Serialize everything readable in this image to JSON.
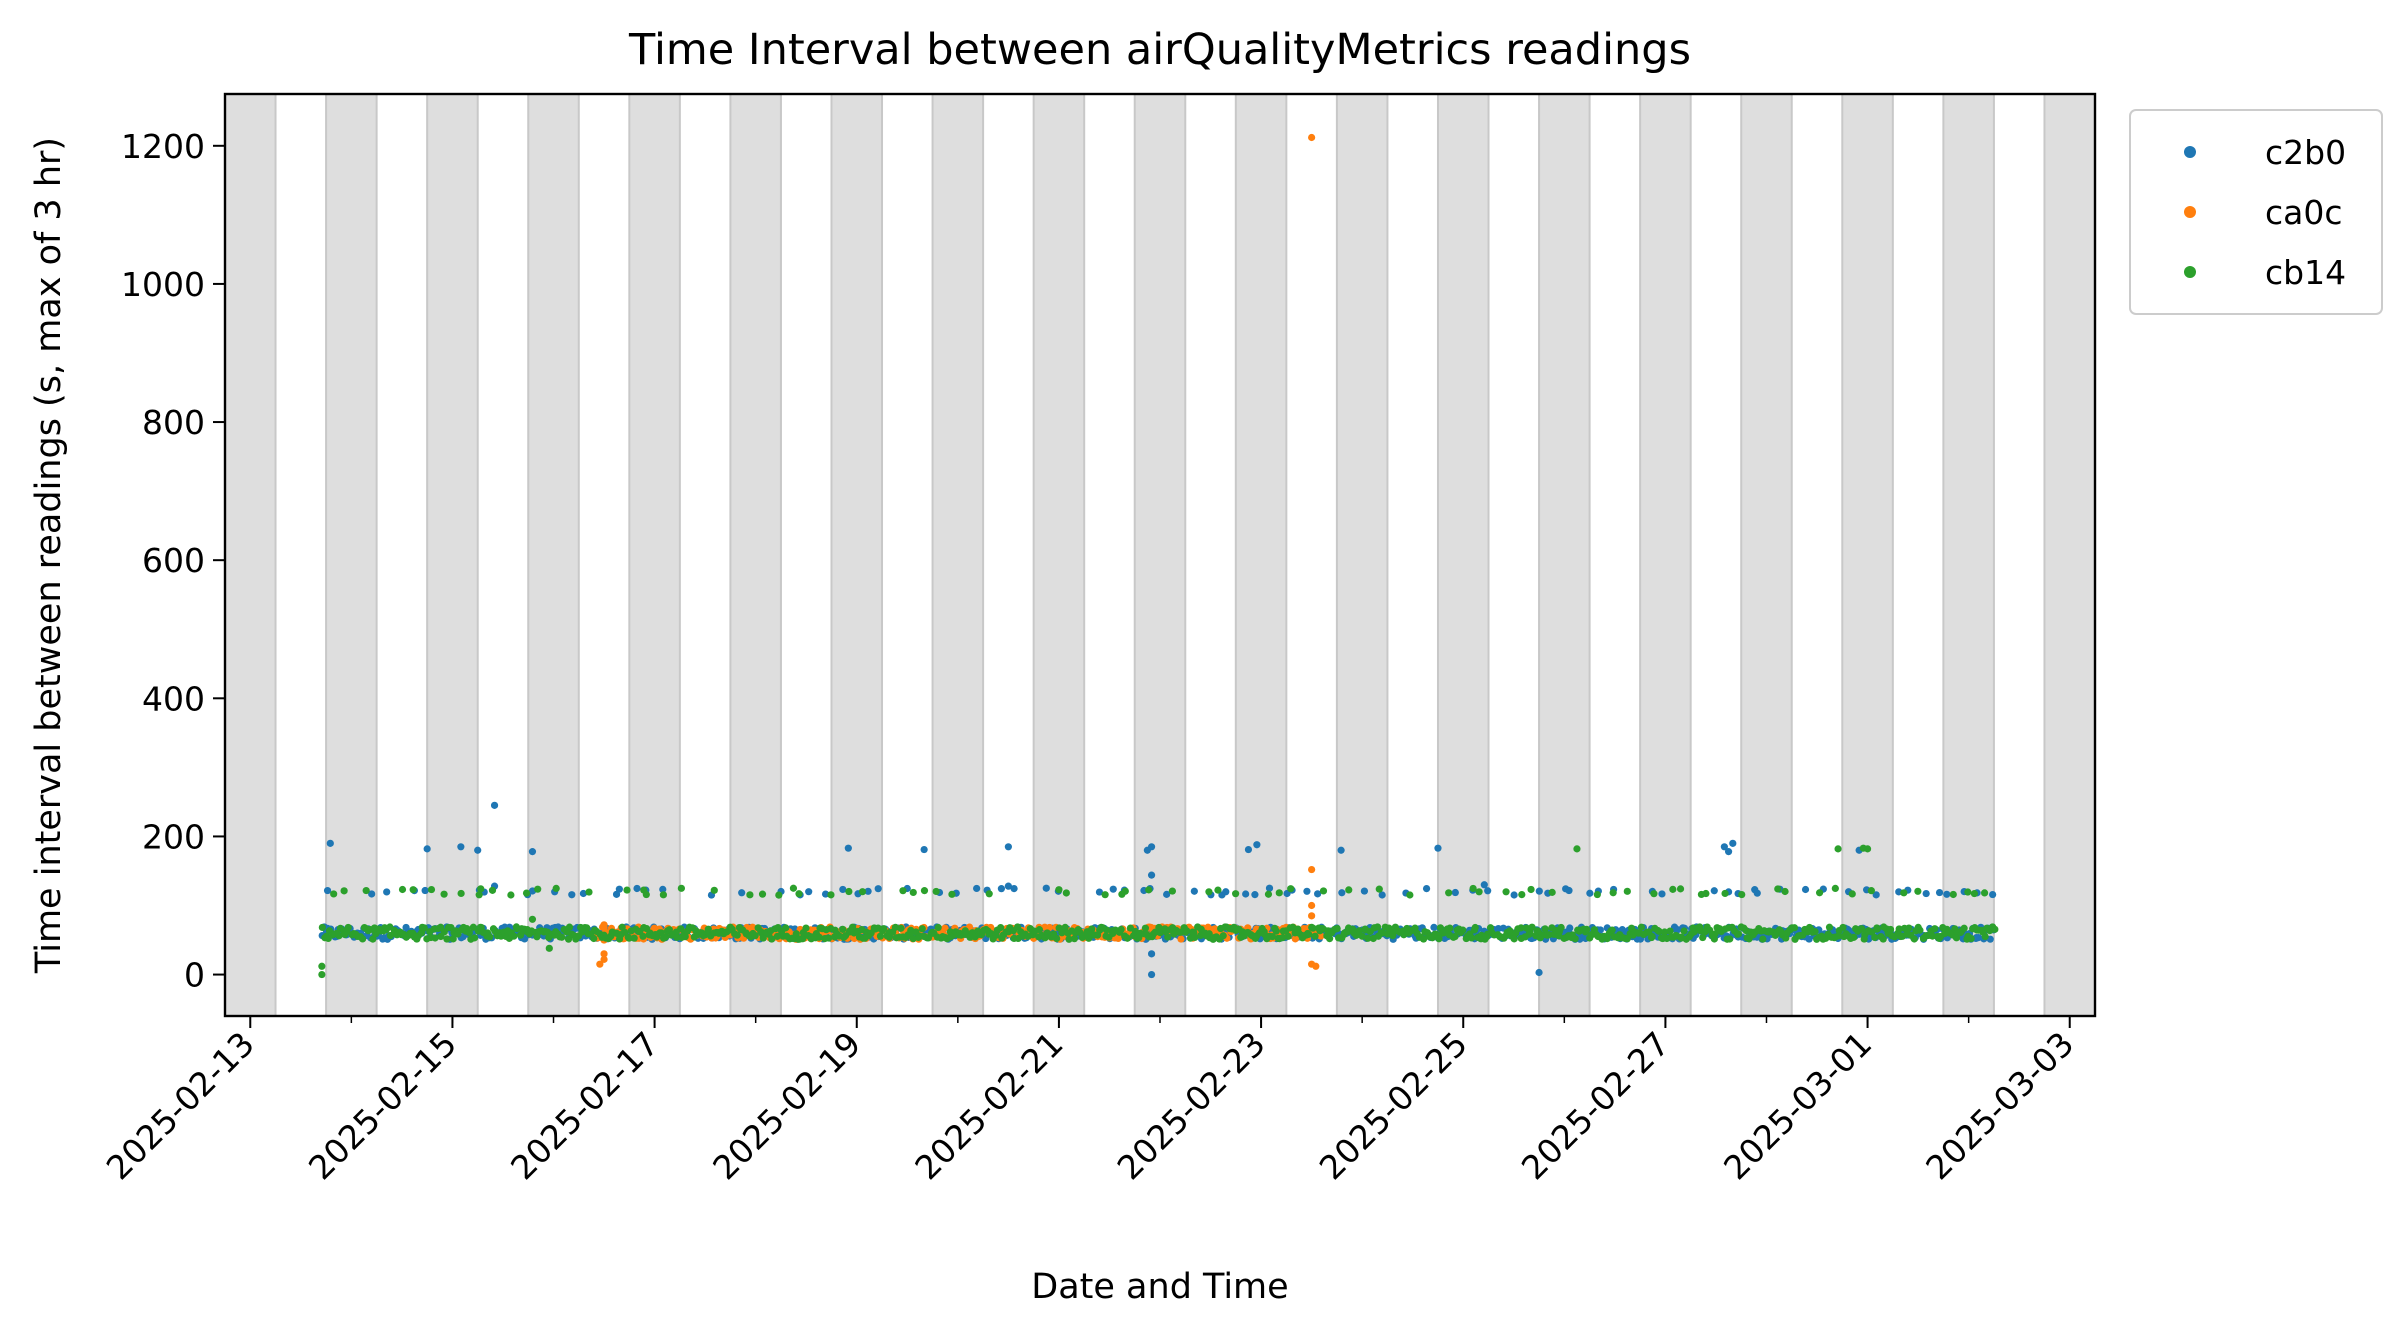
{
  "chart_data": {
    "type": "scatter",
    "title": "Time Interval between airQualityMetrics readings",
    "xlabel": "Date and Time",
    "ylabel": "Time interval between readings (s, max of 3 hr)",
    "xlim": [
      "2025-02-12T18:00",
      "2025-03-03T06:00"
    ],
    "ylim": [
      -60,
      1275
    ],
    "x_ticks": [
      "2025-02-13",
      "2025-02-15",
      "2025-02-17",
      "2025-02-19",
      "2025-02-21",
      "2025-02-23",
      "2025-02-25",
      "2025-02-27",
      "2025-03-01",
      "2025-03-03"
    ],
    "y_ticks": [
      0,
      200,
      400,
      600,
      800,
      1000,
      1200
    ],
    "y_tick_labels": [
      "0",
      "200",
      "400",
      "600",
      "800",
      "1000",
      "1200"
    ],
    "grid": false,
    "shaded_bands": {
      "color": "#dedede",
      "start": "2025-02-12T18:00",
      "daily_from": "18:00",
      "daily_to": "06:00",
      "note_visible": false
    },
    "legend": {
      "placement": "outside-top-right"
    },
    "series": [
      {
        "name": "c2b0",
        "color": "#1f77b4",
        "points": [
          [
            "2025-02-13T19:00",
            190
          ],
          [
            "2025-02-14T18:00",
            182
          ],
          [
            "2025-02-15T02:00",
            185
          ],
          [
            "2025-02-15T06:00",
            180
          ],
          [
            "2025-02-15T10:00",
            245
          ],
          [
            "2025-02-15T19:00",
            178
          ],
          [
            "2025-02-15T10:00",
            128
          ],
          [
            "2025-02-18T22:00",
            183
          ],
          [
            "2025-02-19T16:00",
            181
          ],
          [
            "2025-02-20T12:00",
            185
          ],
          [
            "2025-02-20T12:00",
            128
          ],
          [
            "2025-02-20T21:00",
            125
          ],
          [
            "2025-02-21T21:00",
            180
          ],
          [
            "2025-02-21T22:00",
            144
          ],
          [
            "2025-02-21T22:00",
            185
          ],
          [
            "2025-02-21T22:00",
            30
          ],
          [
            "2025-02-21T22:00",
            0
          ],
          [
            "2025-02-22T21:00",
            181
          ],
          [
            "2025-02-22T23:00",
            188
          ],
          [
            "2025-02-23T02:00",
            125
          ],
          [
            "2025-02-23T19:00",
            180
          ],
          [
            "2025-02-24T18:00",
            183
          ],
          [
            "2025-02-25T05:00",
            130
          ],
          [
            "2025-02-25T18:00",
            3
          ],
          [
            "2025-02-27T14:00",
            185
          ],
          [
            "2025-02-27T16:00",
            190
          ],
          [
            "2025-02-27T15:00",
            178
          ],
          [
            "2025-02-28T22:00",
            180
          ]
        ],
        "base_levels": [
          60,
          120
        ],
        "base_range": [
          "2025-02-13T17:00",
          "2025-03-02T06:00"
        ]
      },
      {
        "name": "ca0c",
        "color": "#ff7f0e",
        "points": [
          [
            "2025-02-16T12:00",
            72
          ],
          [
            "2025-02-16T12:00",
            68
          ],
          [
            "2025-02-16T12:00",
            50
          ],
          [
            "2025-02-16T12:00",
            30
          ],
          [
            "2025-02-16T12:00",
            22
          ],
          [
            "2025-02-16T11:00",
            15
          ],
          [
            "2025-02-23T12:00",
            1212
          ],
          [
            "2025-02-23T12:00",
            152
          ],
          [
            "2025-02-23T12:00",
            100
          ],
          [
            "2025-02-23T12:00",
            85
          ],
          [
            "2025-02-23T12:00",
            15
          ],
          [
            "2025-02-23T13:00",
            12
          ]
        ],
        "base_levels": [
          60
        ],
        "base_range": [
          "2025-02-16T10:00",
          "2025-02-23T14:00"
        ]
      },
      {
        "name": "cb14",
        "color": "#2ca02c",
        "points": [
          [
            "2025-02-13T17:00",
            12
          ],
          [
            "2025-02-13T17:00",
            0
          ],
          [
            "2025-02-15T19:00",
            80
          ],
          [
            "2025-02-15T23:00",
            38
          ],
          [
            "2025-02-26T03:00",
            182
          ],
          [
            "2025-02-28T17:00",
            182
          ],
          [
            "2025-02-28T23:00",
            183
          ],
          [
            "2025-03-01T00:00",
            182
          ]
        ],
        "base_levels": [
          60,
          120
        ],
        "base_range": [
          "2025-02-13T17:00",
          "2025-03-02T06:00"
        ]
      }
    ]
  }
}
